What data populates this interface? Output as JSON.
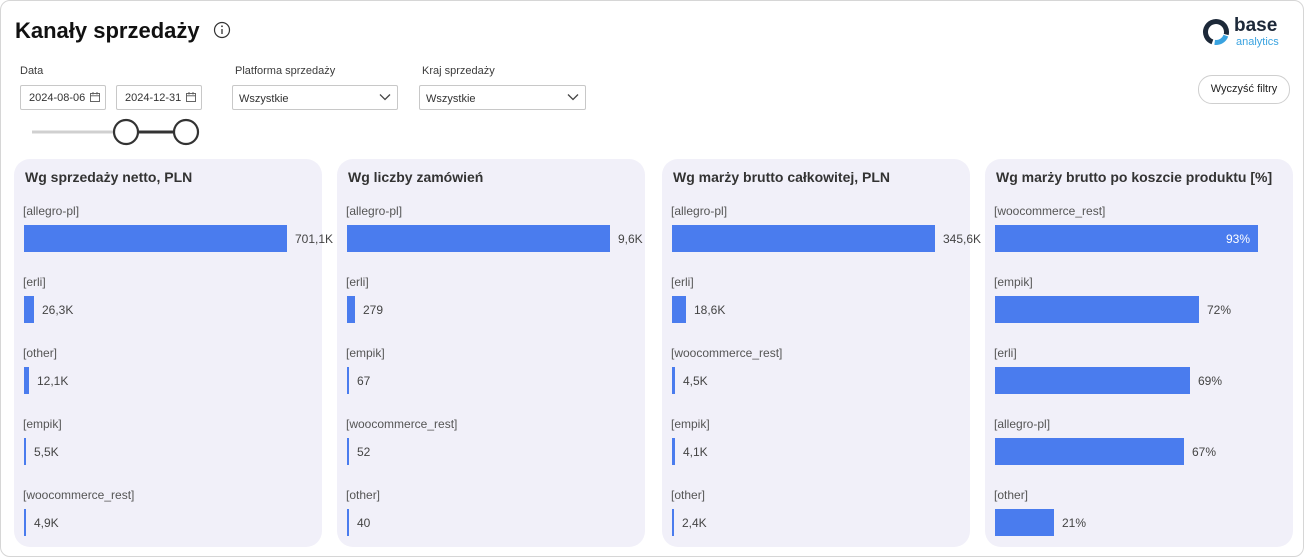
{
  "header": {
    "title": "Kanały sprzedaży",
    "logo": {
      "name": "base",
      "sub": "analytics",
      "colors": {
        "ring_dark": "#1d2939",
        "ring_light": "#3aa3e0"
      }
    }
  },
  "filters": {
    "date": {
      "label": "Data",
      "from": "2024-08-06",
      "to": "2024-12-31"
    },
    "platform": {
      "label": "Platforma sprzedaży",
      "value": "Wszystkie"
    },
    "country": {
      "label": "Kraj sprzedaży",
      "value": "Wszystkie"
    },
    "clear_label": "Wyczyść filtry"
  },
  "colors": {
    "bar": "#4a7cee",
    "panel_bg": "#f1f0f9"
  },
  "chart_data": [
    {
      "type": "bar",
      "orientation": "horizontal",
      "title": "Wg sprzedaży netto, PLN",
      "categories": [
        "[allegro-pl]",
        "[erli]",
        "[other]",
        "[empik]",
        "[woocommerce_rest]"
      ],
      "values": [
        701100,
        26300,
        12100,
        5500,
        4900
      ],
      "labels": [
        "701,1K",
        "26,3K",
        "12,1K",
        "5,5K",
        "4,9K"
      ],
      "xlim": [
        0,
        701100
      ]
    },
    {
      "type": "bar",
      "orientation": "horizontal",
      "title": "Wg liczby zamówień",
      "categories": [
        "[allegro-pl]",
        "[erli]",
        "[empik]",
        "[woocommerce_rest]",
        "[other]"
      ],
      "values": [
        9600,
        279,
        67,
        52,
        40
      ],
      "labels": [
        "9,6K",
        "279",
        "67",
        "52",
        "40"
      ],
      "xlim": [
        0,
        9600
      ]
    },
    {
      "type": "bar",
      "orientation": "horizontal",
      "title": "Wg marży brutto całkowitej, PLN",
      "categories": [
        "[allegro-pl]",
        "[erli]",
        "[woocommerce_rest]",
        "[empik]",
        "[other]"
      ],
      "values": [
        345600,
        18600,
        4500,
        4100,
        2400
      ],
      "labels": [
        "345,6K",
        "18,6K",
        "4,5K",
        "4,1K",
        "2,4K"
      ],
      "xlim": [
        0,
        345600
      ]
    },
    {
      "type": "bar",
      "orientation": "horizontal",
      "title": "Wg marży brutto po koszcie produktu [%]",
      "categories": [
        "[woocommerce_rest]",
        "[empik]",
        "[erli]",
        "[allegro-pl]",
        "[other]"
      ],
      "values": [
        93,
        72,
        69,
        67,
        21
      ],
      "labels": [
        "93%",
        "72%",
        "69%",
        "67%",
        "21%"
      ],
      "xlim": [
        0,
        93
      ]
    }
  ]
}
